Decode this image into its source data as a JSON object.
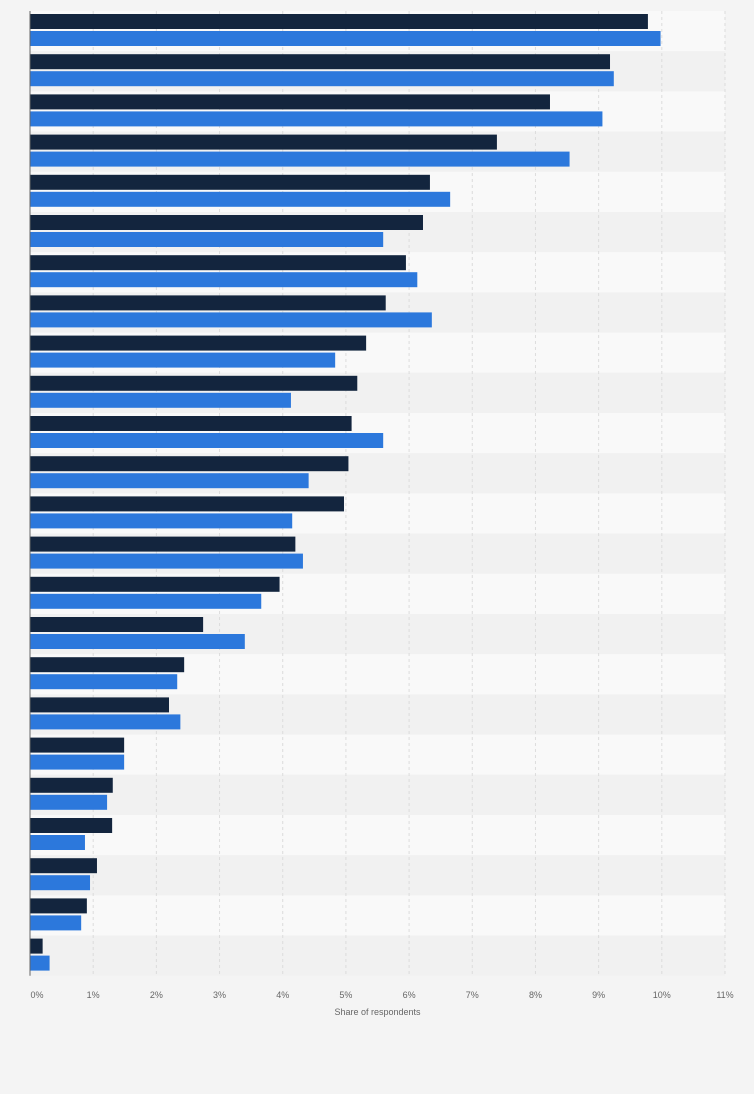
{
  "chart_data": {
    "type": "bar",
    "orientation": "horizontal",
    "xlabel": "Share of respondents",
    "ylabel": "",
    "xlim": [
      0,
      11
    ],
    "x_ticks": [
      "0%",
      "1%",
      "2%",
      "3%",
      "4%",
      "5%",
      "6%",
      "7%",
      "8%",
      "9%",
      "10%",
      "11%"
    ],
    "grid": true,
    "series": [
      {
        "color": "#13253e",
        "values": [
          9.78,
          9.18,
          8.23,
          7.39,
          6.33,
          6.22,
          5.95,
          5.63,
          5.32,
          5.18,
          5.09,
          5.04,
          4.97,
          4.2,
          3.95,
          2.74,
          2.44,
          2.2,
          1.49,
          1.31,
          1.3,
          1.06,
          0.9,
          0.2
        ]
      },
      {
        "color": "#2c78dc",
        "values": [
          9.98,
          9.24,
          9.06,
          8.54,
          6.65,
          5.59,
          6.13,
          6.36,
          4.83,
          4.13,
          5.59,
          4.41,
          4.15,
          4.32,
          3.66,
          3.4,
          2.33,
          2.38,
          1.49,
          1.22,
          0.87,
          0.95,
          0.81,
          0.31
        ]
      }
    ]
  }
}
